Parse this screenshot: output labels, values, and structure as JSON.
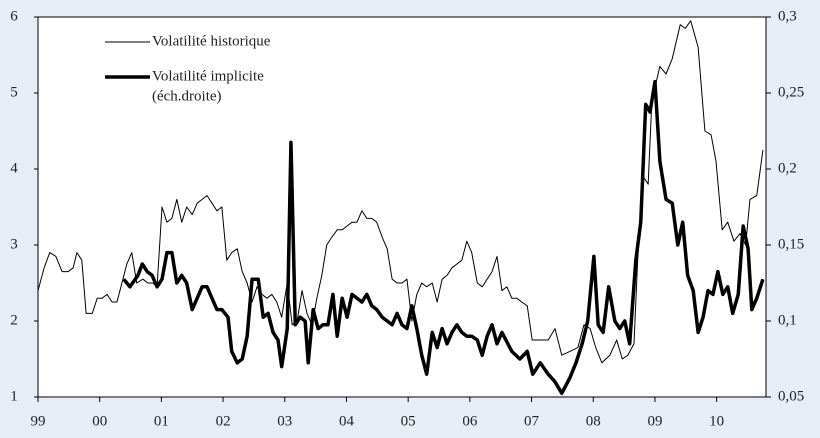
{
  "chart_data": {
    "type": "line",
    "xlim": [
      1999,
      2010.8
    ],
    "xticks": [
      {
        "value": 1999,
        "label": "99"
      },
      {
        "value": 2000,
        "label": "00"
      },
      {
        "value": 2001,
        "label": "01"
      },
      {
        "value": 2002,
        "label": "02"
      },
      {
        "value": 2003,
        "label": "03"
      },
      {
        "value": 2004,
        "label": "04"
      },
      {
        "value": 2005,
        "label": "05"
      },
      {
        "value": 2006,
        "label": "06"
      },
      {
        "value": 2007,
        "label": "07"
      },
      {
        "value": 2008,
        "label": "08"
      },
      {
        "value": 2009,
        "label": "09"
      },
      {
        "value": 2010,
        "label": "10"
      }
    ],
    "ylim": [
      1,
      6
    ],
    "yticks": [
      1,
      2,
      3,
      4,
      5,
      6
    ],
    "y2lim": [
      0.05,
      0.3
    ],
    "y2ticks": [
      {
        "value": 0.05,
        "label": "0,05"
      },
      {
        "value": 0.1,
        "label": "0,1"
      },
      {
        "value": 0.15,
        "label": "0,15"
      },
      {
        "value": 0.2,
        "label": "0,2"
      },
      {
        "value": 0.25,
        "label": "0,25"
      },
      {
        "value": 0.3,
        "label": "0,3"
      }
    ],
    "legend_position": "upper left",
    "series": [
      {
        "name": "Volatilité historique",
        "color": "#000000",
        "line_width": 1,
        "x": [
          1999.0,
          1999.1,
          1999.19,
          1999.29,
          1999.39,
          1999.49,
          1999.57,
          1999.63,
          1999.71,
          1999.78,
          1999.88,
          1999.96,
          2000.04,
          2000.12,
          2000.2,
          2000.28,
          2000.36,
          2000.44,
          2000.52,
          2000.6,
          2000.7,
          2000.78,
          2000.86,
          2000.93,
          2001.01,
          2001.09,
          2001.17,
          2001.25,
          2001.33,
          2001.41,
          2001.5,
          2001.58,
          2001.66,
          2001.74,
          2001.82,
          2001.9,
          2001.98,
          2002.06,
          2002.14,
          2002.23,
          2002.31,
          2002.39,
          2002.47,
          2002.55,
          2002.63,
          2002.71,
          2002.79,
          2002.87,
          2002.95,
          2003.04,
          2003.12,
          2003.2,
          2003.28,
          2003.36,
          2003.44,
          2003.52,
          2003.6,
          2003.68,
          2003.76,
          2003.85,
          2003.93,
          2004.01,
          2004.09,
          2004.17,
          2004.25,
          2004.33,
          2004.41,
          2004.49,
          2004.58,
          2004.66,
          2004.74,
          2004.82,
          2004.9,
          2004.98,
          2005.06,
          2005.14,
          2005.22,
          2005.3,
          2005.39,
          2005.47,
          2005.55,
          2005.63,
          2005.71,
          2005.79,
          2005.87,
          2005.95,
          2006.03,
          2006.12,
          2006.2,
          2006.28,
          2006.36,
          2006.44,
          2006.52,
          2006.6,
          2006.68,
          2006.76,
          2006.84,
          2006.93,
          2007.01,
          2007.1,
          2007.27,
          2007.38,
          2007.49,
          2007.62,
          2007.75,
          2007.85,
          2007.95,
          2008.04,
          2008.14,
          2008.27,
          2008.38,
          2008.47,
          2008.56,
          2008.66,
          2008.72,
          2008.81,
          2008.89,
          2008.95,
          2009.08,
          2009.18,
          2009.28,
          2009.41,
          2009.49,
          2009.58,
          2009.7,
          2009.81,
          2009.91,
          2009.99,
          2010.09,
          2010.18,
          2010.28,
          2010.38,
          2010.47,
          2010.54,
          2010.65,
          2010.75
        ],
        "values": [
          2.4,
          2.7,
          2.9,
          2.85,
          2.65,
          2.65,
          2.7,
          2.9,
          2.8,
          2.1,
          2.1,
          2.3,
          2.3,
          2.35,
          2.25,
          2.25,
          2.5,
          2.75,
          2.9,
          2.5,
          2.55,
          2.5,
          2.5,
          2.45,
          3.5,
          3.3,
          3.35,
          3.6,
          3.3,
          3.5,
          3.4,
          3.55,
          3.6,
          3.65,
          3.55,
          3.45,
          3.5,
          2.8,
          2.9,
          2.95,
          2.65,
          2.5,
          2.25,
          2.45,
          2.35,
          2.3,
          2.35,
          2.25,
          2.05,
          2.5,
          1.95,
          2.0,
          2.4,
          2.1,
          1.95,
          2.3,
          2.6,
          3.0,
          3.1,
          3.2,
          3.2,
          3.25,
          3.3,
          3.3,
          3.45,
          3.35,
          3.35,
          3.3,
          3.1,
          2.95,
          2.55,
          2.5,
          2.5,
          2.55,
          2.0,
          2.35,
          2.5,
          2.45,
          2.5,
          2.25,
          2.55,
          2.6,
          2.7,
          2.75,
          2.8,
          3.05,
          2.9,
          2.5,
          2.45,
          2.55,
          2.65,
          2.85,
          2.4,
          2.45,
          2.3,
          2.3,
          2.25,
          2.2,
          1.75,
          1.75,
          1.75,
          1.9,
          1.55,
          1.6,
          1.65,
          1.95,
          1.9,
          1.65,
          1.45,
          1.55,
          1.75,
          1.5,
          1.55,
          1.7,
          2.8,
          3.9,
          3.8,
          4.9,
          5.35,
          5.25,
          5.45,
          5.9,
          5.85,
          5.95,
          5.6,
          4.5,
          4.45,
          4.1,
          3.2,
          3.3,
          3.05,
          3.15,
          3.0,
          3.6,
          3.65,
          4.25
        ]
      },
      {
        "name": "Volatilité implicite",
        "legend_note": "(éch.droite)",
        "color": "#000000",
        "line_width": 3.5,
        "axis": "y2",
        "x": [
          2000.39,
          2000.49,
          2000.62,
          2000.69,
          2000.77,
          2000.85,
          2000.93,
          2001.01,
          2001.09,
          2001.17,
          2001.25,
          2001.33,
          2001.41,
          2001.5,
          2001.58,
          2001.66,
          2001.74,
          2001.82,
          2001.9,
          2001.98,
          2002.08,
          2002.14,
          2002.23,
          2002.31,
          2002.39,
          2002.47,
          2002.57,
          2002.65,
          2002.73,
          2002.81,
          2002.89,
          2002.95,
          2003.04,
          2003.1,
          2003.17,
          2003.25,
          2003.33,
          2003.38,
          2003.46,
          2003.54,
          2003.62,
          2003.7,
          2003.78,
          2003.85,
          2003.93,
          2004.01,
          2004.09,
          2004.17,
          2004.25,
          2004.33,
          2004.41,
          2004.49,
          2004.58,
          2004.66,
          2004.74,
          2004.82,
          2004.9,
          2004.98,
          2005.06,
          2005.14,
          2005.22,
          2005.3,
          2005.39,
          2005.47,
          2005.55,
          2005.63,
          2005.71,
          2005.79,
          2005.87,
          2005.95,
          2006.03,
          2006.12,
          2006.2,
          2006.28,
          2006.36,
          2006.44,
          2006.52,
          2006.68,
          2006.81,
          2006.93,
          2007.02,
          2007.14,
          2007.27,
          2007.38,
          2007.49,
          2007.62,
          2007.72,
          2007.82,
          2007.91,
          2008.01,
          2008.08,
          2008.16,
          2008.25,
          2008.35,
          2008.43,
          2008.51,
          2008.59,
          2008.69,
          2008.77,
          2008.85,
          2008.92,
          2009.0,
          2009.08,
          2009.18,
          2009.28,
          2009.37,
          2009.45,
          2009.53,
          2009.62,
          2009.7,
          2009.78,
          2009.86,
          2009.94,
          2010.02,
          2010.1,
          2010.18,
          2010.26,
          2010.35,
          2010.43,
          2010.51,
          2010.57,
          2010.65,
          2010.75
        ],
        "values": [
          0.1275,
          0.1225,
          0.13,
          0.1375,
          0.1325,
          0.13,
          0.1225,
          0.1275,
          0.145,
          0.145,
          0.125,
          0.13,
          0.125,
          0.1075,
          0.115,
          0.1225,
          0.1225,
          0.115,
          0.1075,
          0.1075,
          0.1025,
          0.08,
          0.0725,
          0.075,
          0.09,
          0.1275,
          0.1275,
          0.1025,
          0.105,
          0.0925,
          0.0875,
          0.07,
          0.095,
          0.2175,
          0.0975,
          0.1025,
          0.1,
          0.0725,
          0.1075,
          0.095,
          0.0975,
          0.0975,
          0.1175,
          0.09,
          0.115,
          0.1025,
          0.1175,
          0.115,
          0.1125,
          0.1175,
          0.11,
          0.1075,
          0.1025,
          0.1,
          0.0975,
          0.105,
          0.0975,
          0.095,
          0.11,
          0.095,
          0.0775,
          0.065,
          0.0925,
          0.0825,
          0.095,
          0.085,
          0.0925,
          0.0975,
          0.0925,
          0.09,
          0.09,
          0.0875,
          0.0775,
          0.09,
          0.0975,
          0.085,
          0.0925,
          0.08,
          0.075,
          0.08,
          0.065,
          0.0725,
          0.065,
          0.06,
          0.0525,
          0.0625,
          0.0725,
          0.085,
          0.1,
          0.1425,
          0.0975,
          0.0925,
          0.1225,
          0.1,
          0.095,
          0.1,
          0.085,
          0.14,
          0.165,
          0.2425,
          0.2375,
          0.2575,
          0.205,
          0.18,
          0.1775,
          0.15,
          0.165,
          0.13,
          0.12,
          0.0925,
          0.1025,
          0.12,
          0.1175,
          0.1325,
          0.1175,
          0.1225,
          0.105,
          0.1175,
          0.1625,
          0.1475,
          0.1075,
          0.115,
          0.1275
        ]
      }
    ]
  }
}
